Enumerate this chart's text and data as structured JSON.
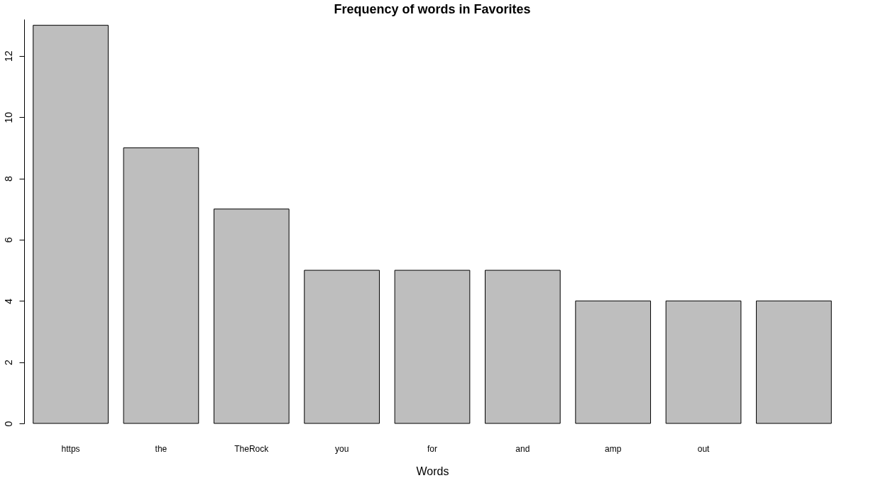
{
  "chart_data": {
    "type": "bar",
    "title": "Frequency of words in Favorites",
    "xlabel": "Words",
    "categories": [
      "https",
      "the",
      "TheRock",
      "you",
      "for",
      "and",
      "amp",
      "out",
      null
    ],
    "values": [
      13,
      9,
      7,
      5,
      5,
      5,
      4,
      4,
      4
    ],
    "color": "#bebebe",
    "ylim": [
      0,
      13.2
    ],
    "yticks": [
      0,
      2,
      4,
      6,
      8,
      10,
      12
    ]
  }
}
